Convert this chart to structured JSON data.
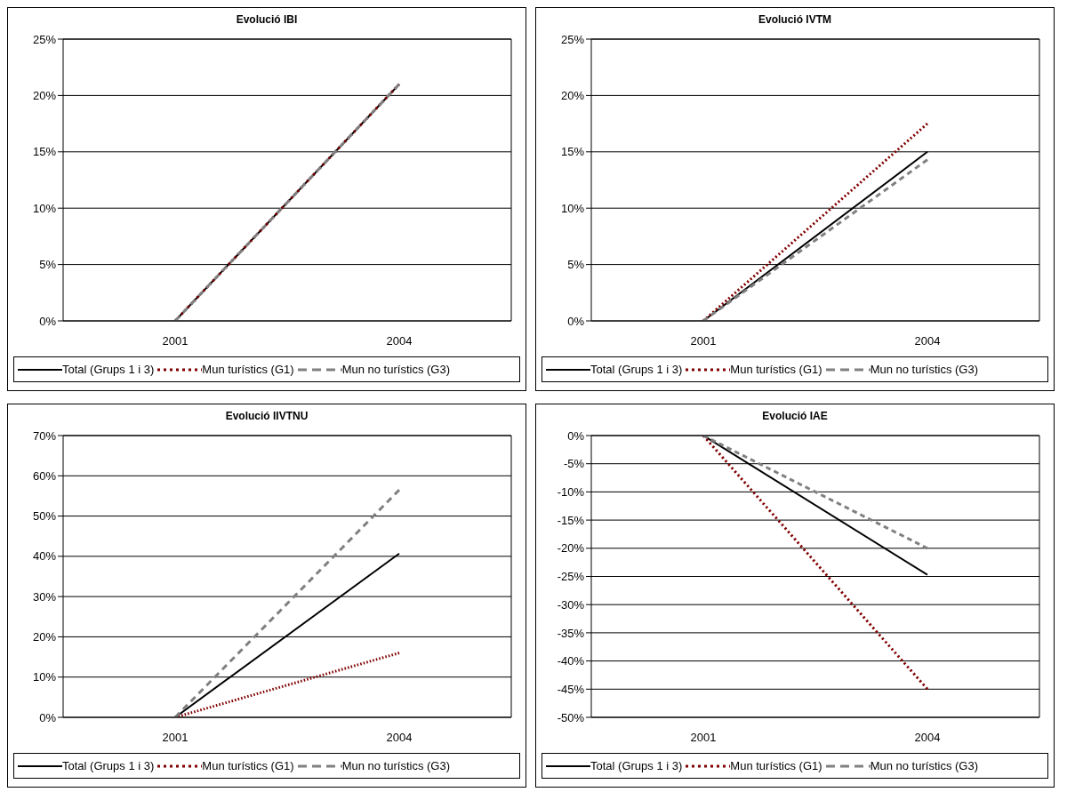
{
  "chart_data": [
    {
      "type": "line",
      "title": "Evolució IBI",
      "categories": [
        "2001",
        "2004"
      ],
      "ylim": [
        0,
        25
      ],
      "yticks": [
        {
          "value": 0,
          "label": "0%"
        },
        {
          "value": 5,
          "label": "5%"
        },
        {
          "value": 10,
          "label": "10%"
        },
        {
          "value": 15,
          "label": "15%"
        },
        {
          "value": 20,
          "label": "20%"
        },
        {
          "value": 25,
          "label": "25%"
        }
      ],
      "grid": "y",
      "legend": "bottom",
      "marker": "none",
      "series": [
        {
          "name": "Total (Grups 1 i 3)",
          "color": "#000000",
          "line_style": "solid",
          "values": [
            0,
            21
          ]
        },
        {
          "name": "Mun turístics (G1)",
          "color": "#800000",
          "line_style": "dotted",
          "values": [
            0,
            21
          ]
        },
        {
          "name": "Mun no turístics (G3)",
          "color": "#808080",
          "line_style": "dashed",
          "values": [
            0,
            21
          ]
        }
      ]
    },
    {
      "type": "line",
      "title": "Evolució IVTM",
      "categories": [
        "2001",
        "2004"
      ],
      "ylim": [
        0,
        25
      ],
      "yticks": [
        {
          "value": 0,
          "label": "0%"
        },
        {
          "value": 5,
          "label": "5%"
        },
        {
          "value": 10,
          "label": "10%"
        },
        {
          "value": 15,
          "label": "15%"
        },
        {
          "value": 20,
          "label": "20%"
        },
        {
          "value": 25,
          "label": "25%"
        }
      ],
      "grid": "y",
      "legend": "bottom",
      "marker": "none",
      "series": [
        {
          "name": "Total (Grups 1 i 3)",
          "color": "#000000",
          "line_style": "solid",
          "values": [
            0,
            15
          ]
        },
        {
          "name": "Mun turístics (G1)",
          "color": "#800000",
          "line_style": "dotted",
          "values": [
            0,
            17.5
          ]
        },
        {
          "name": "Mun no turístics (G3)",
          "color": "#808080",
          "line_style": "dashed",
          "values": [
            0,
            14.3
          ]
        }
      ]
    },
    {
      "type": "line",
      "title": "Evolució IIVTNU",
      "categories": [
        "2001",
        "2004"
      ],
      "ylim": [
        0,
        70
      ],
      "yticks": [
        {
          "value": 0,
          "label": "0%"
        },
        {
          "value": 10,
          "label": "10%"
        },
        {
          "value": 20,
          "label": "20%"
        },
        {
          "value": 30,
          "label": "30%"
        },
        {
          "value": 40,
          "label": "40%"
        },
        {
          "value": 50,
          "label": "50%"
        },
        {
          "value": 60,
          "label": "60%"
        },
        {
          "value": 70,
          "label": "70%"
        }
      ],
      "grid": "y",
      "legend": "bottom",
      "marker": "none",
      "series": [
        {
          "name": "Total (Grups 1 i 3)",
          "color": "#000000",
          "line_style": "solid",
          "values": [
            0,
            40.7
          ]
        },
        {
          "name": "Mun turístics (G1)",
          "color": "#800000",
          "line_style": "dotted",
          "values": [
            0,
            16
          ]
        },
        {
          "name": "Mun no turístics (G3)",
          "color": "#808080",
          "line_style": "dashed",
          "values": [
            0,
            56.5
          ]
        }
      ]
    },
    {
      "type": "line",
      "title": "Evolució IAE",
      "categories": [
        "2001",
        "2004"
      ],
      "ylim": [
        -50,
        0
      ],
      "yticks": [
        {
          "value": -50,
          "label": "-50%"
        },
        {
          "value": -45,
          "label": "-45%"
        },
        {
          "value": -40,
          "label": "-40%"
        },
        {
          "value": -35,
          "label": "-35%"
        },
        {
          "value": -30,
          "label": "-30%"
        },
        {
          "value": -25,
          "label": "-25%"
        },
        {
          "value": -20,
          "label": "-20%"
        },
        {
          "value": -15,
          "label": "-15%"
        },
        {
          "value": -10,
          "label": "-10%"
        },
        {
          "value": -5,
          "label": "-5%"
        },
        {
          "value": 0,
          "label": "0%"
        }
      ],
      "grid": "y",
      "legend": "bottom",
      "marker": "none",
      "series": [
        {
          "name": "Total (Grups 1 i 3)",
          "color": "#000000",
          "line_style": "solid",
          "values": [
            0,
            -24.7
          ]
        },
        {
          "name": "Mun turístics (G1)",
          "color": "#800000",
          "line_style": "dotted",
          "values": [
            0,
            -45
          ]
        },
        {
          "name": "Mun no turístics (G3)",
          "color": "#808080",
          "line_style": "dashed",
          "values": [
            0,
            -20
          ]
        }
      ]
    }
  ]
}
